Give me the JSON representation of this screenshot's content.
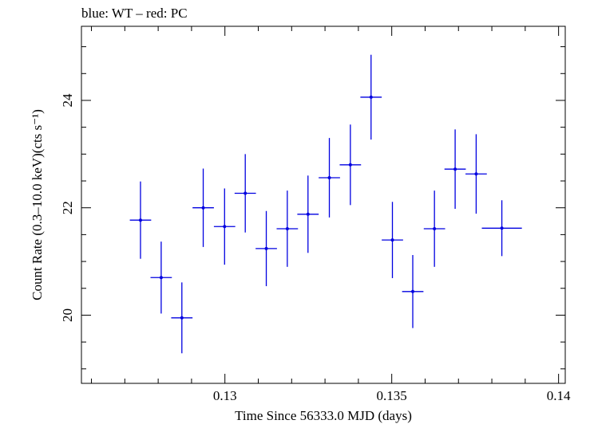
{
  "chart_data": {
    "type": "scatter",
    "title": "blue: WT – red: PC",
    "xlabel": "Time Since 56333.0 MJD (days)",
    "ylabel": "Count Rate (0.3–10.0 keV)(cts s⁻¹)",
    "xlim": [
      0.1257,
      0.1402
    ],
    "ylim": [
      18.73,
      25.38
    ],
    "x_ticks": [
      {
        "value": 0.13,
        "label": "0.13"
      },
      {
        "value": 0.135,
        "label": "0.135"
      },
      {
        "value": 0.14,
        "label": "0.14"
      }
    ],
    "y_ticks": [
      {
        "value": 20,
        "label": "20"
      },
      {
        "value": 22,
        "label": "22"
      },
      {
        "value": 24,
        "label": "24"
      }
    ],
    "grid": false,
    "series": [
      {
        "color": "#0000e0",
        "points": [
          {
            "x": 0.12747,
            "xerr": 0.00032,
            "y": 21.77,
            "yerr": 0.72
          },
          {
            "x": 0.12809,
            "xerr": 0.00032,
            "y": 20.7,
            "yerr": 0.67
          },
          {
            "x": 0.12871,
            "xerr": 0.00032,
            "y": 19.95,
            "yerr": 0.66
          },
          {
            "x": 0.12935,
            "xerr": 0.00032,
            "y": 22.0,
            "yerr": 0.73
          },
          {
            "x": 0.12999,
            "xerr": 0.00032,
            "y": 21.65,
            "yerr": 0.71
          },
          {
            "x": 0.13061,
            "xerr": 0.00032,
            "y": 22.27,
            "yerr": 0.73
          },
          {
            "x": 0.13124,
            "xerr": 0.00032,
            "y": 21.24,
            "yerr": 0.7
          },
          {
            "x": 0.13187,
            "xerr": 0.00032,
            "y": 21.61,
            "yerr": 0.71
          },
          {
            "x": 0.13249,
            "xerr": 0.00032,
            "y": 21.88,
            "yerr": 0.72
          },
          {
            "x": 0.13313,
            "xerr": 0.00032,
            "y": 22.56,
            "yerr": 0.74
          },
          {
            "x": 0.13376,
            "xerr": 0.00032,
            "y": 22.8,
            "yerr": 0.75
          },
          {
            "x": 0.13438,
            "xerr": 0.00032,
            "y": 24.06,
            "yerr": 0.79
          },
          {
            "x": 0.13502,
            "xerr": 0.00032,
            "y": 21.4,
            "yerr": 0.71
          },
          {
            "x": 0.13563,
            "xerr": 0.00032,
            "y": 20.44,
            "yerr": 0.68
          },
          {
            "x": 0.13628,
            "xerr": 0.00032,
            "y": 21.61,
            "yerr": 0.71
          },
          {
            "x": 0.1369,
            "xerr": 0.00032,
            "y": 22.72,
            "yerr": 0.74
          },
          {
            "x": 0.13753,
            "xerr": 0.00032,
            "y": 22.63,
            "yerr": 0.74
          },
          {
            "x": 0.1383,
            "xerr": 0.0006,
            "y": 21.62,
            "yerr": 0.52
          }
        ]
      }
    ]
  }
}
